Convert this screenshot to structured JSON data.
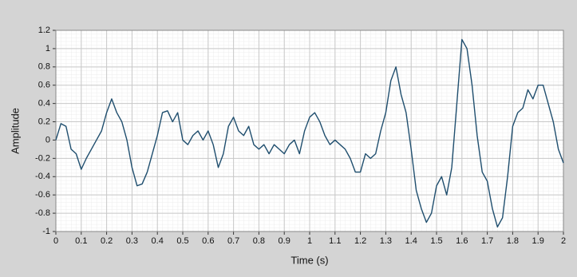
{
  "chart_data": {
    "type": "line",
    "xlabel": "Time (s)",
    "ylabel": "Amplitude",
    "x": [
      0,
      0.02,
      0.04,
      0.06,
      0.08,
      0.1,
      0.12,
      0.14,
      0.16,
      0.18,
      0.2,
      0.22,
      0.24,
      0.26,
      0.28,
      0.3,
      0.32,
      0.34,
      0.36,
      0.38,
      0.4,
      0.42,
      0.44,
      0.46,
      0.48,
      0.5,
      0.52,
      0.54,
      0.56,
      0.58,
      0.6,
      0.62,
      0.64,
      0.66,
      0.68,
      0.7,
      0.72,
      0.74,
      0.76,
      0.78,
      0.8,
      0.82,
      0.84,
      0.86,
      0.88,
      0.9,
      0.92,
      0.94,
      0.96,
      0.98,
      1,
      1.02,
      1.04,
      1.06,
      1.08,
      1.1,
      1.12,
      1.14,
      1.16,
      1.18,
      1.2,
      1.22,
      1.24,
      1.26,
      1.28,
      1.3,
      1.32,
      1.34,
      1.36,
      1.38,
      1.4,
      1.42,
      1.44,
      1.46,
      1.48,
      1.5,
      1.52,
      1.54,
      1.56,
      1.58,
      1.6,
      1.62,
      1.64,
      1.66,
      1.68,
      1.7,
      1.72,
      1.74,
      1.76,
      1.78,
      1.8,
      1.82,
      1.84,
      1.86,
      1.88,
      1.9,
      1.92,
      1.94,
      1.96,
      1.98,
      2
    ],
    "series": [
      {
        "color": "#1f4e6e",
        "values": [
          0,
          0.18,
          0.15,
          -0.1,
          -0.15,
          -0.32,
          -0.2,
          -0.1,
          0,
          0.1,
          0.3,
          0.45,
          0.3,
          0.2,
          0,
          -0.3,
          -0.5,
          -0.48,
          -0.35,
          -0.15,
          0.05,
          0.3,
          0.32,
          0.2,
          0.3,
          0,
          -0.05,
          0.05,
          0.1,
          0,
          0.1,
          -0.05,
          -0.3,
          -0.15,
          0.15,
          0.25,
          0.1,
          0.05,
          0.15,
          -0.05,
          -0.1,
          -0.05,
          -0.15,
          -0.05,
          -0.1,
          -0.15,
          -0.05,
          0,
          -0.15,
          0.1,
          0.25,
          0.3,
          0.2,
          0.05,
          -0.05,
          0,
          -0.05,
          -0.1,
          -0.2,
          -0.35,
          -0.35,
          -0.15,
          -0.2,
          -0.15,
          0.1,
          0.3,
          0.65,
          0.8,
          0.5,
          0.3,
          -0.1,
          -0.55,
          -0.75,
          -0.9,
          -0.8,
          -0.5,
          -0.4,
          -0.6,
          -0.3,
          0.4,
          1.1,
          1,
          0.6,
          0.05,
          -0.35,
          -0.45,
          -0.75,
          -0.95,
          -0.85,
          -0.4,
          0.15,
          0.3,
          0.35,
          0.55,
          0.45,
          0.6,
          0.6,
          0.4,
          0.2,
          -0.1,
          -0.25
        ]
      }
    ],
    "xlim": [
      0,
      2
    ],
    "xticks": [
      0,
      0.1,
      0.2,
      0.3,
      0.4,
      0.5,
      0.6,
      0.7,
      0.8,
      0.9,
      1,
      1.1,
      1.2,
      1.3,
      1.4,
      1.5,
      1.6,
      1.7,
      1.8,
      1.9,
      2
    ],
    "ylim": [
      -1,
      1.2
    ],
    "yticks": [
      -1,
      -0.8,
      -0.6,
      -0.4,
      -0.2,
      0,
      0.2,
      0.4,
      0.6,
      0.8,
      1,
      1.2
    ],
    "grid": true
  }
}
